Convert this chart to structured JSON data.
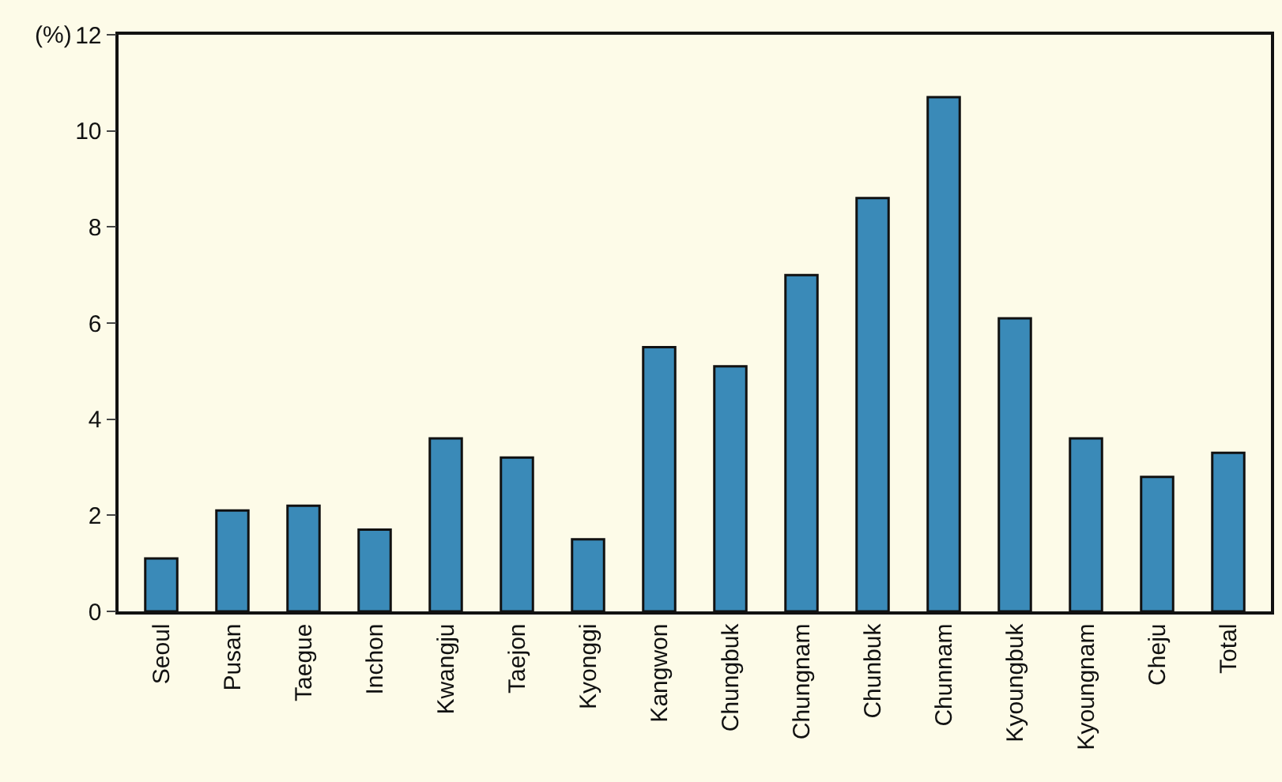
{
  "chart_data": {
    "type": "bar",
    "ylabel": "(%)",
    "categories": [
      "Seoul",
      "Pusan",
      "Taegue",
      "Inchon",
      "Kwangju",
      "Taejon",
      "Kyonggi",
      "Kangwon",
      "Chungbuk",
      "Chungnam",
      "Chunbuk",
      "Chunnam",
      "Kyoungbuk",
      "Kyoungnam",
      "Cheju",
      "Total"
    ],
    "values": [
      1.1,
      2.1,
      2.2,
      1.7,
      3.6,
      3.2,
      1.5,
      5.5,
      5.1,
      7.0,
      8.6,
      10.7,
      6.1,
      3.6,
      2.8,
      3.3
    ],
    "color": "#3a8ab8",
    "ylim": [
      0,
      12
    ],
    "yticks": [
      0,
      2,
      4,
      6,
      8,
      10,
      12
    ]
  }
}
